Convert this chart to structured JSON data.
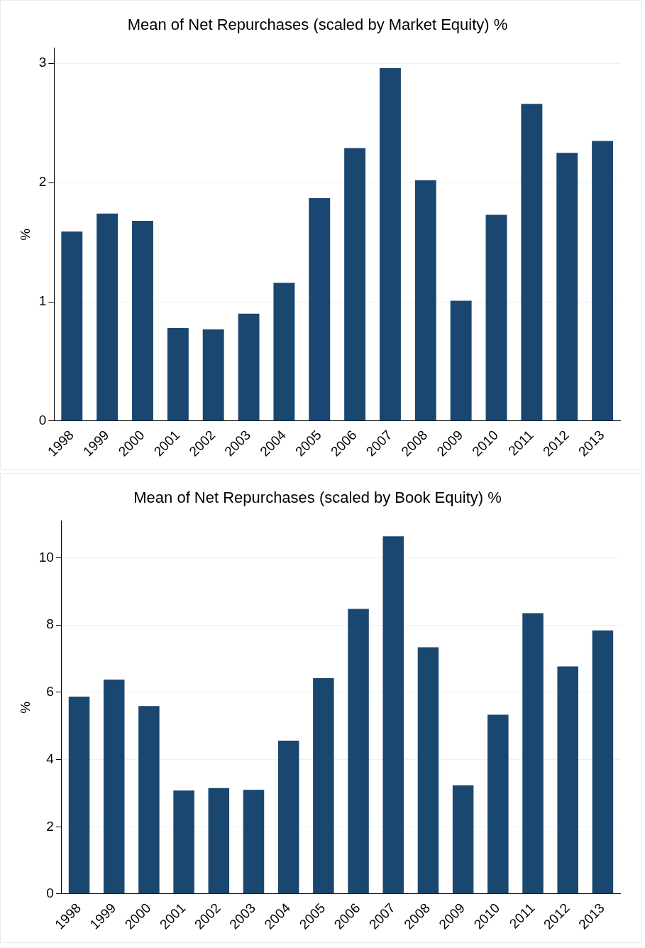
{
  "chart_data": [
    {
      "type": "bar",
      "title": "Mean of Net Repurchases (scaled by Market Equity) %",
      "ylabel": "%",
      "categories": [
        "1998",
        "1999",
        "2000",
        "2001",
        "2002",
        "2003",
        "2004",
        "2005",
        "2006",
        "2007",
        "2008",
        "2009",
        "2010",
        "2011",
        "2012",
        "2013"
      ],
      "series": [
        {
          "color": "#1a476f",
          "values": [
            1.59,
            1.74,
            1.68,
            0.78,
            0.77,
            0.9,
            1.16,
            1.87,
            2.29,
            2.96,
            2.02,
            1.01,
            1.73,
            2.66,
            2.25,
            2.35
          ]
        }
      ],
      "ylim": [
        0,
        3.13
      ],
      "yticks": [
        0,
        1,
        2,
        3
      ],
      "grid": "y"
    },
    {
      "type": "bar",
      "title": "Mean of Net Repurchases (scaled by Book Equity) %",
      "ylabel": "%",
      "categories": [
        "1998",
        "1999",
        "2000",
        "2001",
        "2002",
        "2003",
        "2004",
        "2005",
        "2006",
        "2007",
        "2008",
        "2009",
        "2010",
        "2011",
        "2012",
        "2013"
      ],
      "series": [
        {
          "color": "#1a476f",
          "values": [
            5.87,
            6.38,
            5.59,
            3.08,
            3.15,
            3.1,
            4.56,
            6.42,
            8.48,
            10.64,
            7.34,
            3.23,
            5.33,
            8.35,
            6.77,
            7.84
          ]
        }
      ],
      "ylim": [
        0,
        11.1
      ],
      "yticks": [
        0,
        2,
        4,
        6,
        8,
        10
      ],
      "grid": "y"
    }
  ]
}
